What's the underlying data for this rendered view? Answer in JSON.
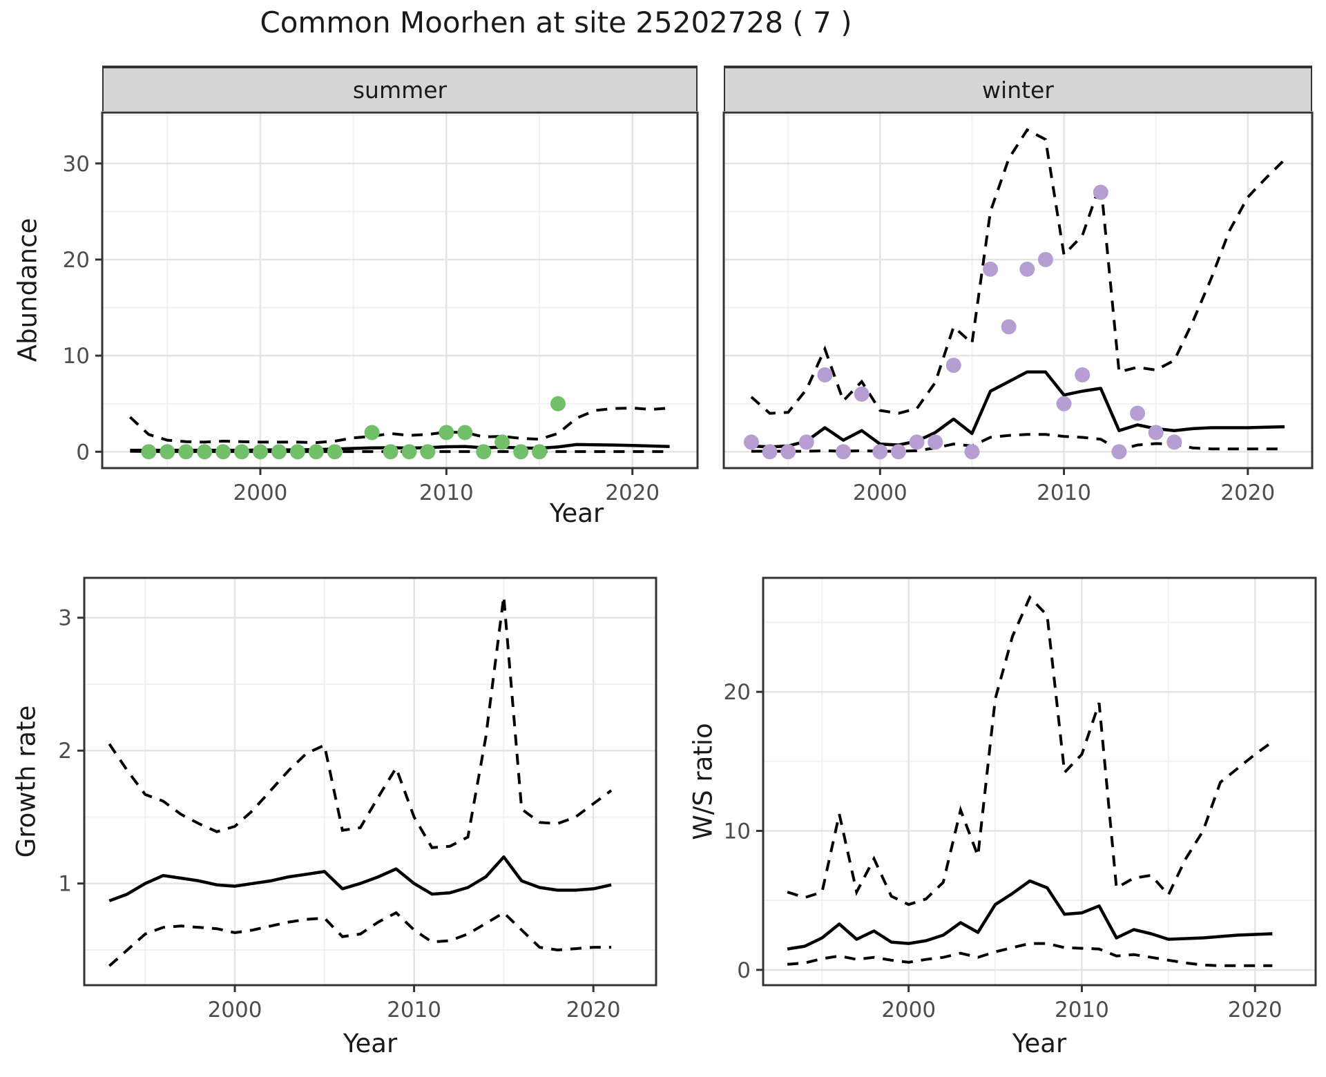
{
  "page": {
    "title": "Common Moorhen at site 25202728 ( 7 )"
  },
  "colors": {
    "summer_point": "#72bf6a",
    "winter_point": "#b79ed2",
    "line": "#000000",
    "grid_major": "#e4e4e4",
    "grid_minor": "#f1f1f1",
    "strip_bg": "#d6d6d6",
    "tick_text": "#4d4d4d",
    "border": "#333333"
  },
  "chart_data": [
    {
      "id": "summer",
      "type": "line",
      "facet_label": "summer",
      "xlabel": "Year",
      "ylabel": "Abundance",
      "xlim": [
        1991.5,
        2023.5
      ],
      "ylim": [
        -1.7,
        35.3
      ],
      "xticks": [
        2000,
        2010,
        2020
      ],
      "xminor": [
        1995,
        2005,
        2015
      ],
      "yticks": [
        0,
        10,
        20,
        30
      ],
      "yminor": [
        5,
        15,
        25,
        35
      ],
      "show_ylabels": true,
      "years_fit": [
        1993,
        1994,
        1995,
        1996,
        1997,
        1998,
        1999,
        2000,
        2001,
        2002,
        2003,
        2004,
        2005,
        2006,
        2007,
        2008,
        2009,
        2010,
        2011,
        2012,
        2013,
        2014,
        2015,
        2016,
        2017,
        2018,
        2019,
        2020,
        2021,
        2022
      ],
      "mean": [
        0.15,
        0.15,
        0.15,
        0.15,
        0.15,
        0.15,
        0.15,
        0.18,
        0.2,
        0.2,
        0.22,
        0.28,
        0.35,
        0.4,
        0.42,
        0.38,
        0.42,
        0.52,
        0.55,
        0.42,
        0.48,
        0.4,
        0.36,
        0.5,
        0.75,
        0.72,
        0.7,
        0.66,
        0.6,
        0.55
      ],
      "upper_ci": [
        3.6,
        1.8,
        1.2,
        1.05,
        1.0,
        1.1,
        1.05,
        1.0,
        1.0,
        1.0,
        0.95,
        1.1,
        1.45,
        1.6,
        1.9,
        1.7,
        1.8,
        2.05,
        2.0,
        1.55,
        1.6,
        1.4,
        1.3,
        1.9,
        3.5,
        4.3,
        4.5,
        4.55,
        4.4,
        4.55
      ],
      "lower_ci": [
        0.05,
        0.02,
        0.02,
        0.02,
        0.02,
        0.02,
        0.02,
        0.02,
        0.02,
        0.02,
        0.02,
        0.02,
        0.02,
        0.02,
        0.02,
        0.02,
        0.02,
        0.02,
        0.02,
        0.02,
        0.02,
        0.02,
        0.02,
        0.02,
        0.02,
        0.02,
        0.02,
        0.02,
        0.02,
        0.02
      ],
      "obs_years": [
        1994,
        1995,
        1996,
        1997,
        1998,
        1999,
        2000,
        2001,
        2002,
        2003,
        2004,
        2006,
        2007,
        2008,
        2009,
        2010,
        2011,
        2012,
        2013,
        2014,
        2015,
        2016
      ],
      "obs": [
        0,
        0,
        0,
        0,
        0,
        0,
        0,
        0,
        0,
        0,
        0,
        2,
        0,
        0,
        0,
        2,
        2,
        0,
        1,
        0,
        0,
        5
      ],
      "point_color": "#72bf6a"
    },
    {
      "id": "winter",
      "type": "line",
      "facet_label": "winter",
      "xlabel": "Year",
      "ylabel": "Abundance",
      "xlim": [
        1991.5,
        2023.5
      ],
      "ylim": [
        -1.7,
        35.3
      ],
      "xticks": [
        2000,
        2010,
        2020
      ],
      "xminor": [
        1995,
        2005,
        2015
      ],
      "yticks": [
        0,
        10,
        20,
        30
      ],
      "yminor": [
        5,
        15,
        25,
        35
      ],
      "show_ylabels": false,
      "years_fit": [
        1993,
        1994,
        1995,
        1996,
        1997,
        1998,
        1999,
        2000,
        2001,
        2002,
        2003,
        2004,
        2005,
        2006,
        2007,
        2008,
        2009,
        2010,
        2011,
        2012,
        2013,
        2014,
        2015,
        2016,
        2017,
        2018,
        2019,
        2020,
        2021,
        2022
      ],
      "mean": [
        0.6,
        0.5,
        0.6,
        1.1,
        2.5,
        1.2,
        2.2,
        0.8,
        0.7,
        1.1,
        2.0,
        3.4,
        1.9,
        6.3,
        7.3,
        8.3,
        8.3,
        5.9,
        6.3,
        6.6,
        2.2,
        2.8,
        2.4,
        2.2,
        2.4,
        2.5,
        2.5,
        2.5,
        2.55,
        2.6
      ],
      "upper_ci": [
        5.7,
        4.0,
        4.1,
        6.5,
        10.7,
        5.3,
        7.3,
        4.3,
        4.0,
        4.5,
        7.2,
        13.0,
        11.3,
        25.0,
        30.5,
        33.5,
        32.5,
        20.5,
        22.5,
        28.0,
        8.3,
        8.8,
        8.5,
        9.5,
        13.5,
        18.0,
        23.0,
        26.5,
        28.5,
        30.4
      ],
      "lower_ci": [
        0.05,
        0.05,
        0.05,
        0.05,
        0.1,
        0.05,
        0.1,
        0.05,
        0.05,
        0.1,
        0.4,
        0.8,
        0.6,
        1.5,
        1.7,
        1.8,
        1.8,
        1.6,
        1.5,
        1.3,
        0.2,
        0.7,
        0.85,
        0.8,
        0.4,
        0.3,
        0.3,
        0.3,
        0.3,
        0.3
      ],
      "obs_years": [
        1993,
        1994,
        1995,
        1996,
        1997,
        1998,
        1999,
        2000,
        2001,
        2002,
        2003,
        2004,
        2005,
        2006,
        2007,
        2008,
        2009,
        2010,
        2011,
        2012,
        2013,
        2014,
        2015,
        2016
      ],
      "obs": [
        1,
        0,
        0,
        1,
        8,
        0,
        6,
        0,
        0,
        1,
        1,
        9,
        0,
        19,
        13,
        19,
        20,
        5,
        8,
        27,
        0,
        4,
        2,
        1
      ],
      "point_color": "#b79ed2"
    },
    {
      "id": "growth",
      "type": "line",
      "facet_label": "",
      "xlabel": "Year",
      "ylabel": "Growth rate",
      "xlim": [
        1991.6,
        2023.5
      ],
      "ylim": [
        0.235,
        3.3
      ],
      "xticks": [
        2000,
        2010,
        2020
      ],
      "xminor": [
        1995,
        2005,
        2015
      ],
      "yticks": [
        1,
        2,
        3
      ],
      "yminor": [
        0.5,
        1.5,
        2.5
      ],
      "show_ylabels": true,
      "years_fit": [
        1993,
        1994,
        1995,
        1996,
        1997,
        1998,
        1999,
        2000,
        2001,
        2002,
        2003,
        2004,
        2005,
        2006,
        2007,
        2008,
        2009,
        2010,
        2011,
        2012,
        2013,
        2014,
        2015,
        2016,
        2017,
        2018,
        2019,
        2020,
        2021
      ],
      "mean": [
        0.87,
        0.92,
        1.0,
        1.06,
        1.04,
        1.02,
        0.99,
        0.98,
        1.0,
        1.02,
        1.05,
        1.07,
        1.09,
        0.96,
        1.0,
        1.05,
        1.11,
        1.0,
        0.92,
        0.93,
        0.97,
        1.05,
        1.2,
        1.02,
        0.97,
        0.95,
        0.95,
        0.96,
        0.99
      ],
      "upper_ci": [
        2.05,
        1.85,
        1.67,
        1.62,
        1.52,
        1.45,
        1.39,
        1.43,
        1.55,
        1.7,
        1.85,
        1.98,
        2.04,
        1.4,
        1.42,
        1.65,
        1.87,
        1.5,
        1.27,
        1.28,
        1.35,
        2.1,
        3.16,
        1.56,
        1.46,
        1.45,
        1.5,
        1.6,
        1.7
      ],
      "lower_ci": [
        0.38,
        0.5,
        0.62,
        0.67,
        0.68,
        0.67,
        0.66,
        0.63,
        0.65,
        0.68,
        0.71,
        0.73,
        0.74,
        0.6,
        0.62,
        0.71,
        0.78,
        0.65,
        0.56,
        0.57,
        0.62,
        0.7,
        0.78,
        0.65,
        0.52,
        0.5,
        0.51,
        0.52,
        0.52
      ],
      "obs_years": [],
      "obs": [],
      "point_color": null
    },
    {
      "id": "ws_ratio",
      "type": "line",
      "facet_label": "",
      "xlabel": "Year",
      "ylabel": "W/S ratio",
      "xlim": [
        1991.6,
        2023.5
      ],
      "ylim": [
        -1.1,
        28.2
      ],
      "xticks": [
        2000,
        2010,
        2020
      ],
      "xminor": [
        1995,
        2005,
        2015
      ],
      "yticks": [
        0,
        10,
        20
      ],
      "yminor": [
        5,
        15,
        25
      ],
      "show_ylabels": true,
      "years_fit": [
        1993,
        1994,
        1995,
        1996,
        1997,
        1998,
        1999,
        2000,
        2001,
        2002,
        2003,
        2004,
        2005,
        2006,
        2007,
        2008,
        2009,
        2010,
        2011,
        2012,
        2013,
        2014,
        2015,
        2016,
        2017,
        2018,
        2019,
        2020,
        2021
      ],
      "mean": [
        1.5,
        1.7,
        2.3,
        3.3,
        2.2,
        2.8,
        2.0,
        1.9,
        2.1,
        2.5,
        3.4,
        2.7,
        4.7,
        5.5,
        6.4,
        5.9,
        4.0,
        4.1,
        4.6,
        2.3,
        2.9,
        2.6,
        2.2,
        2.25,
        2.3,
        2.4,
        2.5,
        2.55,
        2.6
      ],
      "upper_ci": [
        5.6,
        5.2,
        5.6,
        11.2,
        5.6,
        8.0,
        5.3,
        4.7,
        5.1,
        6.3,
        11.5,
        8.2,
        19.5,
        24.0,
        26.8,
        25.5,
        14.2,
        15.5,
        19.2,
        5.9,
        6.6,
        6.8,
        5.4,
        8.0,
        10.0,
        13.5,
        14.5,
        15.5,
        16.4
      ],
      "lower_ci": [
        0.4,
        0.5,
        0.8,
        1.0,
        0.75,
        0.9,
        0.7,
        0.55,
        0.75,
        0.9,
        1.2,
        0.9,
        1.3,
        1.6,
        1.9,
        1.9,
        1.6,
        1.55,
        1.5,
        1.0,
        1.1,
        0.9,
        0.7,
        0.5,
        0.35,
        0.3,
        0.3,
        0.3,
        0.3
      ],
      "obs_years": [],
      "obs": [],
      "point_color": null
    }
  ]
}
